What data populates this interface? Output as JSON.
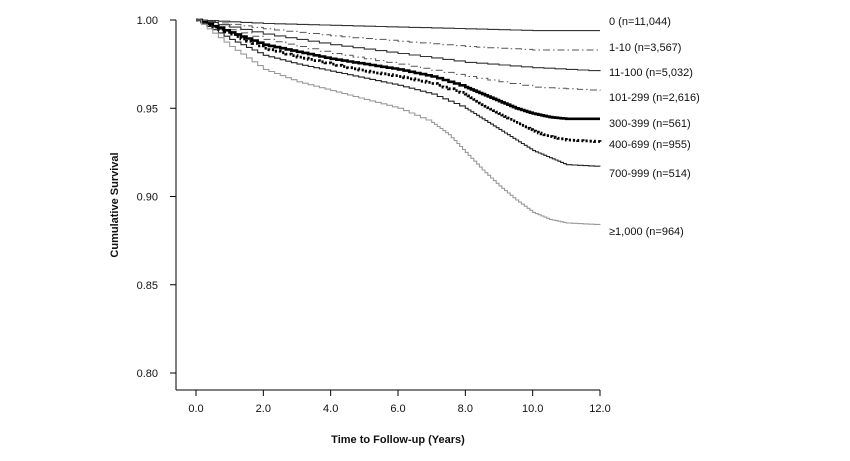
{
  "chart_data": {
    "type": "line",
    "xlabel": "Time to Follow-up (Years)",
    "ylabel": "Cumulative Survival",
    "xlim": [
      0,
      12
    ],
    "ylim": [
      0.8,
      1.0
    ],
    "x_ticks": [
      "0.0",
      "2.0",
      "4.0",
      "6.0",
      "8.0",
      "10.0",
      "12.0"
    ],
    "y_ticks": [
      "0.80",
      "0.85",
      "0.90",
      "0.95",
      "1.00"
    ],
    "x_tick_values": [
      0,
      2,
      4,
      6,
      8,
      10,
      12
    ],
    "y_tick_values": [
      0.8,
      0.85,
      0.9,
      0.95,
      1.0
    ],
    "series": [
      {
        "name": "0 (n=11,044)",
        "style": "solid-thin",
        "color": "#333333",
        "x": [
          0,
          2,
          4,
          6,
          8,
          10,
          12
        ],
        "y": [
          1.0,
          0.998,
          0.997,
          0.996,
          0.995,
          0.994,
          0.994
        ]
      },
      {
        "name": "1-10 (n=3,567)",
        "style": "dash-dot",
        "color": "#555555",
        "x": [
          0,
          2,
          4,
          6,
          8,
          10,
          12
        ],
        "y": [
          1.0,
          0.995,
          0.991,
          0.988,
          0.985,
          0.983,
          0.983
        ]
      },
      {
        "name": "11-100 (n=5,032)",
        "style": "solid-thin",
        "color": "#333333",
        "x": [
          0,
          2,
          4,
          6,
          8,
          10,
          12
        ],
        "y": [
          1.0,
          0.992,
          0.986,
          0.981,
          0.976,
          0.973,
          0.971
        ]
      },
      {
        "name": "101-299 (n=2,616)",
        "style": "dash-dot",
        "color": "#555555",
        "x": [
          0,
          2,
          4,
          6,
          8,
          10,
          12
        ],
        "y": [
          1.0,
          0.989,
          0.981,
          0.975,
          0.968,
          0.962,
          0.96
        ]
      },
      {
        "name": "300-399 (n=561)",
        "style": "solid-bold",
        "color": "#000000",
        "x": [
          0,
          1,
          2,
          3,
          4,
          5,
          6,
          7,
          8,
          8.5,
          9,
          9.5,
          10,
          10.5,
          11,
          12
        ],
        "y": [
          1.0,
          0.993,
          0.986,
          0.982,
          0.978,
          0.975,
          0.972,
          0.968,
          0.962,
          0.958,
          0.954,
          0.95,
          0.947,
          0.945,
          0.944,
          0.944
        ]
      },
      {
        "name": "400-699 (n=955)",
        "style": "dotted-bold",
        "color": "#000000",
        "x": [
          0,
          1,
          2,
          3,
          4,
          5,
          6,
          7,
          8,
          8.5,
          9,
          9.5,
          10,
          10.5,
          11,
          12
        ],
        "y": [
          1.0,
          0.992,
          0.984,
          0.979,
          0.975,
          0.971,
          0.968,
          0.964,
          0.958,
          0.952,
          0.947,
          0.942,
          0.937,
          0.934,
          0.932,
          0.931
        ]
      },
      {
        "name": "700-999 (n=514)",
        "style": "solid-thin",
        "color": "#222222",
        "x": [
          0,
          1,
          2,
          3,
          4,
          5,
          6,
          7,
          8,
          8.5,
          9,
          9.5,
          10,
          10.5,
          11,
          12
        ],
        "y": [
          1.0,
          0.989,
          0.98,
          0.975,
          0.971,
          0.967,
          0.963,
          0.958,
          0.95,
          0.944,
          0.938,
          0.932,
          0.926,
          0.922,
          0.918,
          0.917
        ]
      },
      {
        "name": "≥1,000 (n=964)",
        "style": "solid-light",
        "color": "#9a9a9a",
        "x": [
          0,
          1,
          2,
          3,
          4,
          5,
          6,
          7,
          7.5,
          8,
          8.5,
          9,
          9.5,
          10,
          10.5,
          11,
          12
        ],
        "y": [
          1.0,
          0.985,
          0.972,
          0.965,
          0.96,
          0.955,
          0.95,
          0.942,
          0.935,
          0.925,
          0.915,
          0.906,
          0.898,
          0.891,
          0.887,
          0.885,
          0.884
        ]
      }
    ]
  }
}
